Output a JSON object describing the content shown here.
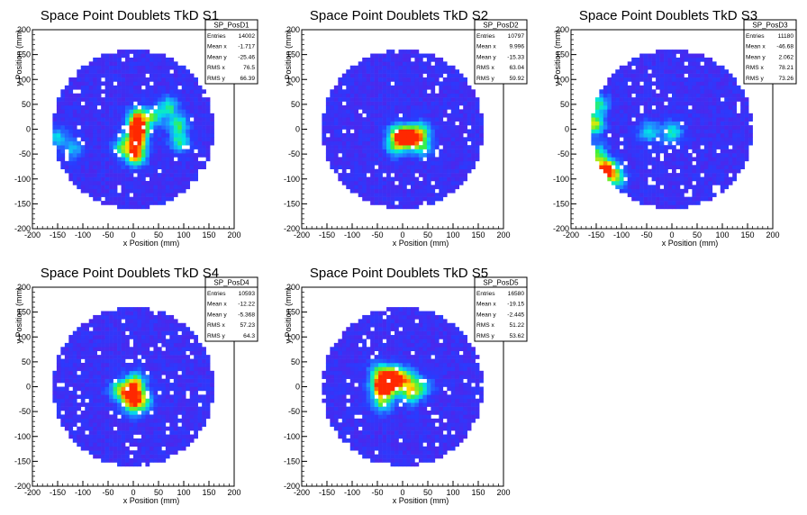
{
  "palette": {
    "background": "#ffffff",
    "fill_low": "#5a1fe6",
    "fill_mid": "#1e90ff",
    "fill_high": "#ff2a00"
  },
  "x_axis": {
    "label": "x Position (mm)",
    "range": [
      -200,
      200
    ],
    "ticks": [
      -200,
      -150,
      -100,
      -50,
      0,
      50,
      100,
      150,
      200
    ]
  },
  "y_axis": {
    "label": "y Position (mm)",
    "range": [
      -200,
      200
    ],
    "ticks": [
      -200,
      -150,
      -100,
      -50,
      0,
      50,
      100,
      150,
      200
    ]
  },
  "chart_data": [
    {
      "type": "heatmap",
      "title": "Space Point Doublets TkD S1",
      "xlabel": "x Position (mm)",
      "ylabel": "y Position (mm)",
      "xlim": [
        -200,
        200
      ],
      "ylim": [
        -200,
        200
      ],
      "fiducial_radius_mm": 160,
      "stats": {
        "name": "SP_PosD1",
        "rows": [
          {
            "label": "Entries",
            "value": "14002"
          },
          {
            "label": "Mean x",
            "value": "-1.717"
          },
          {
            "label": "Mean y",
            "value": "-25.46"
          },
          {
            "label": "RMS x",
            "value": "76.5"
          },
          {
            "label": "RMS y",
            "value": "66.39"
          }
        ]
      },
      "hotspots": [
        {
          "x": 8,
          "y": 0,
          "level": 1.0
        },
        {
          "x": 8,
          "y": 25,
          "level": 0.65
        },
        {
          "x": 8,
          "y": -25,
          "level": 0.7
        },
        {
          "x": 5,
          "y": -55,
          "level": 0.75
        },
        {
          "x": -20,
          "y": -35,
          "level": 0.5
        },
        {
          "x": 40,
          "y": 25,
          "level": 0.45
        },
        {
          "x": 70,
          "y": 45,
          "level": 0.45
        },
        {
          "x": 90,
          "y": 10,
          "level": 0.5
        },
        {
          "x": 92,
          "y": -25,
          "level": 0.45
        },
        {
          "x": -150,
          "y": -15,
          "level": 0.35
        },
        {
          "x": -120,
          "y": -40,
          "level": 0.3
        }
      ]
    },
    {
      "type": "heatmap",
      "title": "Space Point Doublets TkD S2",
      "xlabel": "x Position (mm)",
      "ylabel": "y Position (mm)",
      "xlim": [
        -200,
        200
      ],
      "ylim": [
        -200,
        200
      ],
      "fiducial_radius_mm": 160,
      "stats": {
        "name": "SP_PosD2",
        "rows": [
          {
            "label": "Entries",
            "value": "10797"
          },
          {
            "label": "Mean x",
            "value": "9.996"
          },
          {
            "label": "Mean y",
            "value": "-15.33"
          },
          {
            "label": "RMS x",
            "value": "63.04"
          },
          {
            "label": "RMS y",
            "value": "59.92"
          }
        ]
      },
      "hotspots": [
        {
          "x": 12,
          "y": -18,
          "level": 1.0
        },
        {
          "x": -10,
          "y": -8,
          "level": 0.6
        },
        {
          "x": 35,
          "y": -5,
          "level": 0.55
        },
        {
          "x": -15,
          "y": -35,
          "level": 0.45
        },
        {
          "x": 40,
          "y": -35,
          "level": 0.45
        }
      ]
    },
    {
      "type": "heatmap",
      "title": "Space Point Doublets TkD S3",
      "xlabel": "x Position (mm)",
      "ylabel": "y Position (mm)",
      "xlim": [
        -200,
        200
      ],
      "ylim": [
        -200,
        200
      ],
      "fiducial_radius_mm": 160,
      "stats": {
        "name": "SP_PosD3",
        "rows": [
          {
            "label": "Entries",
            "value": "11180"
          },
          {
            "label": "Mean x",
            "value": "-46.68"
          },
          {
            "label": "Mean y",
            "value": "2.062"
          },
          {
            "label": "RMS x",
            "value": "78.21"
          },
          {
            "label": "RMS y",
            "value": "73.26"
          }
        ]
      },
      "hotspots": [
        {
          "x": -155,
          "y": 10,
          "level": 0.7
        },
        {
          "x": -145,
          "y": 50,
          "level": 0.5
        },
        {
          "x": -150,
          "y": -50,
          "level": 0.55
        },
        {
          "x": -130,
          "y": -80,
          "level": 1.0
        },
        {
          "x": -110,
          "y": -100,
          "level": 0.5
        },
        {
          "x": 0,
          "y": -5,
          "level": 0.45
        },
        {
          "x": -45,
          "y": -5,
          "level": 0.4
        }
      ]
    },
    {
      "type": "heatmap",
      "title": "Space Point Doublets TkD S4",
      "xlabel": "x Position (mm)",
      "ylabel": "y Position (mm)",
      "xlim": [
        -200,
        200
      ],
      "ylim": [
        -200,
        200
      ],
      "fiducial_radius_mm": 160,
      "stats": {
        "name": "SP_PosD4",
        "rows": [
          {
            "label": "Entries",
            "value": "10593"
          },
          {
            "label": "Mean x",
            "value": "-12.22"
          },
          {
            "label": "Mean y",
            "value": "-5.368"
          },
          {
            "label": "RMS x",
            "value": "57.23"
          },
          {
            "label": "RMS y",
            "value": "64.3"
          }
        ]
      },
      "hotspots": [
        {
          "x": -5,
          "y": -15,
          "level": 1.0
        },
        {
          "x": 5,
          "y": 10,
          "level": 0.6
        },
        {
          "x": -30,
          "y": -5,
          "level": 0.45
        },
        {
          "x": 20,
          "y": -30,
          "level": 0.45
        },
        {
          "x": 0,
          "y": -40,
          "level": 0.4
        }
      ]
    },
    {
      "type": "heatmap",
      "title": "Space Point Doublets TkD S5",
      "xlabel": "x Position (mm)",
      "ylabel": "y Position (mm)",
      "xlim": [
        -200,
        200
      ],
      "ylim": [
        -200,
        200
      ],
      "fiducial_radius_mm": 160,
      "stats": {
        "name": "SP_PosD5",
        "rows": [
          {
            "label": "Entries",
            "value": "16580"
          },
          {
            "label": "Mean x",
            "value": "-19.15"
          },
          {
            "label": "Mean y",
            "value": "-2.445"
          },
          {
            "label": "RMS x",
            "value": "51.22"
          },
          {
            "label": "RMS y",
            "value": "53.62"
          }
        ]
      },
      "hotspots": [
        {
          "x": -45,
          "y": 0,
          "level": 0.7
        },
        {
          "x": -45,
          "y": 30,
          "level": 0.55
        },
        {
          "x": -40,
          "y": -30,
          "level": 0.55
        },
        {
          "x": -25,
          "y": 5,
          "level": 1.0
        },
        {
          "x": -15,
          "y": 25,
          "level": 0.6
        },
        {
          "x": 10,
          "y": 15,
          "level": 0.55
        },
        {
          "x": 15,
          "y": -15,
          "level": 0.55
        },
        {
          "x": 40,
          "y": 0,
          "level": 0.4
        }
      ]
    }
  ]
}
